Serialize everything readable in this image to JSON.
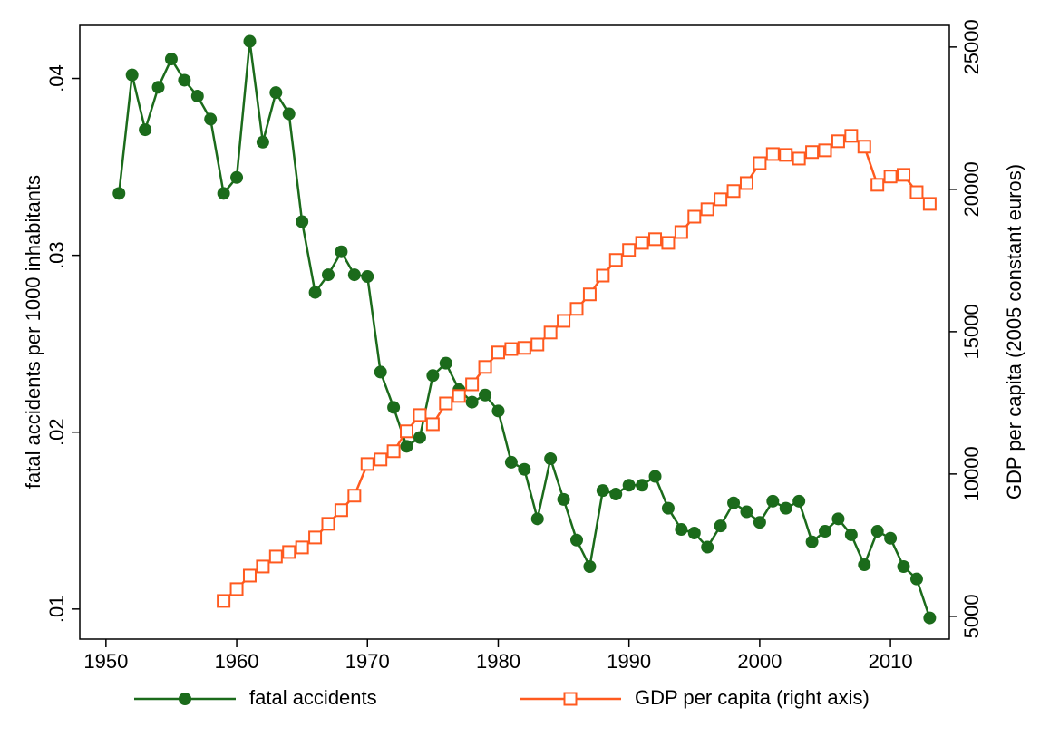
{
  "chart_data": {
    "type": "line",
    "y_label": "fatal accidents per 1000 inhabitants",
    "y2_label": "GDP per capita (2005 constant euros)",
    "x": [
      1951,
      1952,
      1953,
      1954,
      1955,
      1956,
      1957,
      1958,
      1959,
      1960,
      1961,
      1962,
      1963,
      1964,
      1965,
      1966,
      1967,
      1968,
      1969,
      1970,
      1971,
      1972,
      1973,
      1974,
      1975,
      1976,
      1977,
      1978,
      1979,
      1980,
      1981,
      1982,
      1983,
      1984,
      1985,
      1986,
      1987,
      1988,
      1989,
      1990,
      1991,
      1992,
      1993,
      1994,
      1995,
      1996,
      1997,
      1998,
      1999,
      2000,
      2001,
      2002,
      2003,
      2004,
      2005,
      2006,
      2007,
      2008,
      2009,
      2010,
      2011,
      2012,
      2013
    ],
    "series": [
      {
        "name": "fatal accidents",
        "color": "#1b6b1b",
        "marker": "circle",
        "values": [
          0.0335,
          0.0402,
          0.0371,
          0.0395,
          0.0411,
          0.0399,
          0.039,
          0.0377,
          0.0335,
          0.0344,
          0.0421,
          0.0364,
          0.0392,
          0.038,
          0.0319,
          0.0279,
          0.0289,
          0.0302,
          0.0289,
          0.0288,
          0.0234,
          0.0214,
          0.0192,
          0.0197,
          0.0232,
          0.0239,
          0.0224,
          0.0217,
          0.0221,
          0.0212,
          0.0183,
          0.0179,
          0.0151,
          0.0185,
          0.0162,
          0.0139,
          0.0124,
          0.0167,
          0.0165,
          0.017,
          0.017,
          0.0175,
          0.0157,
          0.0145,
          0.0143,
          0.0135,
          0.0147,
          0.016,
          0.0155,
          0.0149,
          0.0161,
          0.0157,
          0.0161,
          0.0138,
          0.0144,
          0.0151,
          0.0142,
          0.0125,
          0.0144,
          0.014,
          0.0124,
          0.0117,
          0.0095
        ]
      },
      {
        "name": "GDP per capita (right axis)",
        "color": "#ff5a1f",
        "marker": "square",
        "axis": "y2",
        "values": [
          null,
          null,
          null,
          null,
          null,
          null,
          null,
          null,
          5540,
          5955,
          6430,
          6750,
          7100,
          7260,
          7420,
          7770,
          8250,
          8730,
          9240,
          10350,
          10510,
          10800,
          11500,
          12070,
          11750,
          12480,
          12740,
          13150,
          13760,
          14270,
          14390,
          14430,
          14550,
          14970,
          15380,
          15800,
          16310,
          16970,
          17520,
          17870,
          18120,
          18250,
          18120,
          18500,
          19040,
          19300,
          19650,
          19940,
          20220,
          20920,
          21240,
          21210,
          21080,
          21310,
          21370,
          21690,
          21880,
          21500,
          20160,
          20450,
          20510,
          19900,
          19490
        ]
      }
    ],
    "xlim": [
      1948,
      2014.5
    ],
    "xticks": [
      1950,
      1960,
      1970,
      1980,
      1990,
      2000,
      2010
    ],
    "ylim": [
      0.0083,
      0.043
    ],
    "yticks": [
      {
        "value": 0.01,
        "label": ".01"
      },
      {
        "value": 0.02,
        "label": ".02"
      },
      {
        "value": 0.03,
        "label": ".03"
      },
      {
        "value": 0.04,
        "label": ".04"
      }
    ],
    "y2lim": [
      4200,
      25760
    ],
    "y2ticks": [
      5000,
      10000,
      15000,
      20000,
      25000
    ],
    "legend": "bottom"
  }
}
